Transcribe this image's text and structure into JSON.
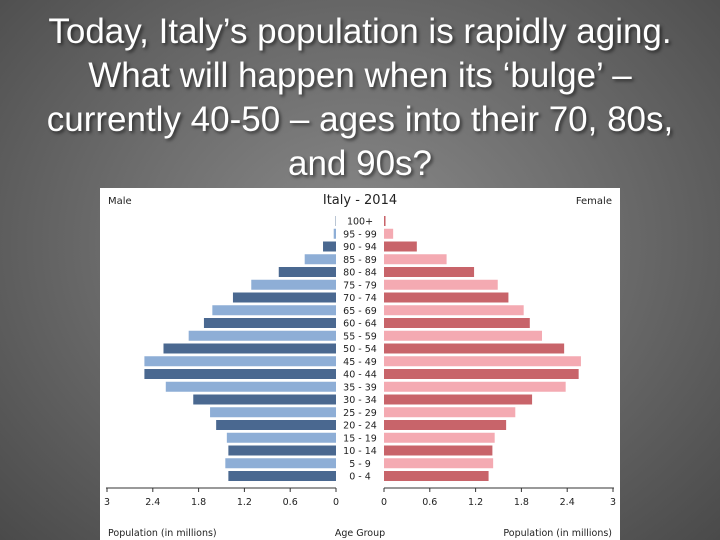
{
  "slide": {
    "title": "Today, Italy’s population is rapidly aging.  What will happen when its ‘bulge’ – currently 40-50 – ages into their 70, 80s, and 90s?"
  },
  "colors": {
    "male_dark": "#4a6890",
    "male_light": "#8eaed6",
    "female_dark": "#c8646a",
    "female_light": "#f4aab2"
  },
  "chart_data": {
    "type": "bar",
    "title": "Italy - 2014",
    "left_header": "Male",
    "right_header": "Female",
    "center_label": "Age Group",
    "left_xlabel": "Population (in millions)",
    "right_xlabel": "Population (in millions)",
    "xlim": [
      0,
      3
    ],
    "left_ticks": [
      "3",
      "2.4",
      "1.8",
      "1.2",
      "0.6",
      "0"
    ],
    "right_ticks": [
      "0",
      "0.6",
      "1.2",
      "1.8",
      "2.4",
      "3"
    ],
    "categories": [
      "100+",
      "95 - 99",
      "90 - 94",
      "85 - 89",
      "80 - 84",
      "75 - 79",
      "70 - 74",
      "65 - 69",
      "60 - 64",
      "55 - 59",
      "50 - 54",
      "45 - 49",
      "40 - 44",
      "35 - 39",
      "30 - 34",
      "25 - 29",
      "20 - 24",
      "15 - 19",
      "10 - 14",
      "5 - 9",
      "0 - 4"
    ],
    "series": [
      {
        "name": "Male",
        "values": [
          0.005,
          0.03,
          0.17,
          0.41,
          0.75,
          1.11,
          1.35,
          1.62,
          1.73,
          1.93,
          2.26,
          2.51,
          2.51,
          2.23,
          1.87,
          1.65,
          1.57,
          1.43,
          1.41,
          1.45,
          1.41
        ]
      },
      {
        "name": "Female",
        "values": [
          0.02,
          0.12,
          0.43,
          0.82,
          1.18,
          1.49,
          1.63,
          1.83,
          1.91,
          2.07,
          2.36,
          2.58,
          2.55,
          2.38,
          1.94,
          1.72,
          1.6,
          1.45,
          1.42,
          1.43,
          1.37
        ]
      }
    ]
  }
}
